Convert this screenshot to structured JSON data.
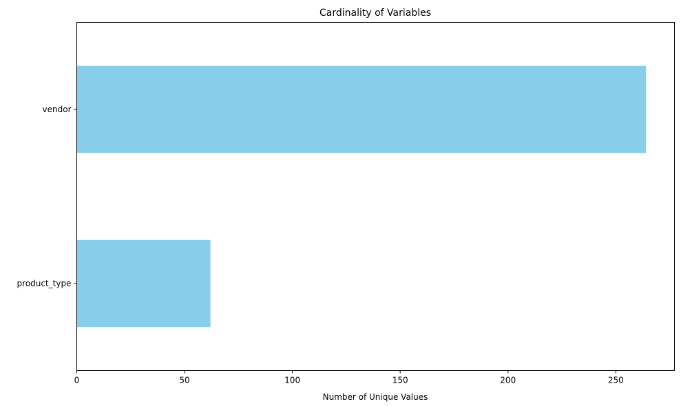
{
  "chart_data": {
    "type": "bar",
    "orientation": "horizontal",
    "title": "Cardinality of Variables",
    "xlabel": "Number of Unique Values",
    "ylabel": "",
    "categories": [
      "vendor",
      "product_type"
    ],
    "values": [
      264,
      62
    ],
    "xlim": [
      0,
      277.2
    ],
    "xticks": [
      0,
      50,
      100,
      150,
      200,
      250
    ],
    "xtick_labels": [
      "0",
      "50",
      "100",
      "150",
      "200",
      "250"
    ],
    "bar_color": "#87ceeb",
    "grid": false,
    "legend": "none"
  }
}
